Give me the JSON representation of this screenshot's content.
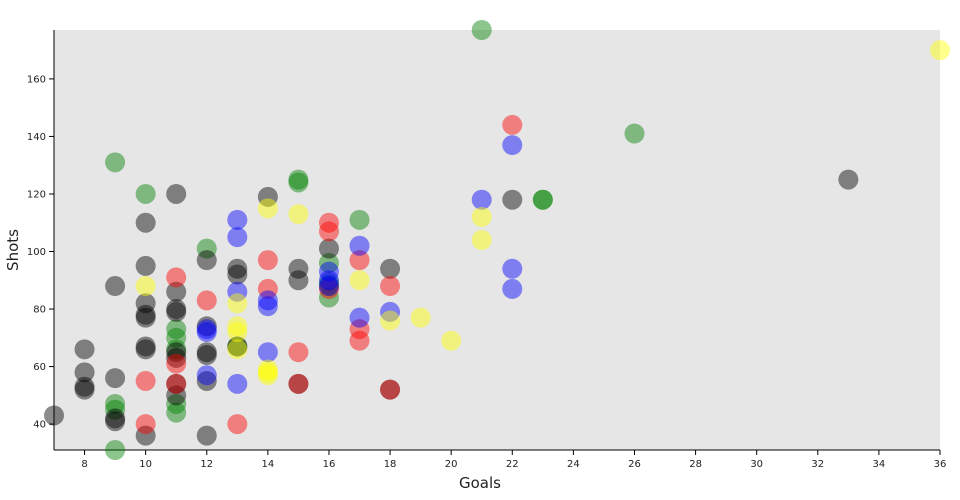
{
  "chart_data": {
    "type": "scatter",
    "x_label": "Goals",
    "y_label": "Shots",
    "xlim": [
      7,
      36
    ],
    "ylim": [
      31,
      177
    ],
    "xticks": [
      8,
      10,
      12,
      14,
      16,
      18,
      20,
      22,
      24,
      26,
      28,
      30,
      32,
      34,
      36
    ],
    "yticks": [
      40,
      60,
      80,
      100,
      120,
      140,
      160
    ],
    "background": "#e6e6e6",
    "opacity": 0.45,
    "series": [
      {
        "color": "#008000",
        "x": [
          21,
          26,
          9,
          10,
          15,
          15,
          23,
          23,
          17,
          12,
          16,
          16,
          16,
          11,
          11,
          11,
          11,
          11,
          9,
          9,
          9,
          13,
          16
        ],
        "values": [
          177,
          141,
          131,
          120,
          125,
          124,
          118,
          118,
          111,
          101,
          96,
          89,
          84,
          73,
          70,
          66,
          47,
          44,
          47,
          45,
          31,
          67,
          88
        ]
      },
      {
        "color": "#000000",
        "x": [
          7,
          8,
          8,
          8,
          8,
          9,
          9,
          9,
          9,
          10,
          10,
          10,
          10,
          10,
          10,
          10,
          10,
          11,
          11,
          11,
          11,
          11,
          11,
          11,
          11,
          12,
          12,
          12,
          12,
          12,
          12,
          13,
          13,
          13,
          14,
          15,
          15,
          15,
          16,
          18,
          18,
          22,
          33
        ],
        "values": [
          43,
          66,
          58,
          52,
          53,
          88,
          56,
          42,
          41,
          110,
          95,
          82,
          78,
          77,
          67,
          66,
          36,
          120,
          86,
          80,
          79,
          65,
          63,
          54,
          50,
          97,
          74,
          65,
          64,
          55,
          36,
          94,
          92,
          67,
          119,
          94,
          90,
          54,
          101,
          94,
          52,
          118,
          125
        ]
      },
      {
        "color": "#ff0000",
        "x": [
          22,
          16,
          16,
          11,
          12,
          14,
          14,
          17,
          17,
          17,
          18,
          16,
          15,
          10,
          11,
          11,
          10,
          13,
          15,
          18
        ],
        "values": [
          144,
          110,
          107,
          91,
          83,
          97,
          87,
          97,
          73,
          69,
          88,
          87,
          65,
          55,
          61,
          54,
          40,
          40,
          54,
          52
        ]
      },
      {
        "color": "#0000ff",
        "x": [
          22,
          21,
          22,
          22,
          13,
          13,
          17,
          16,
          16,
          13,
          14,
          14,
          12,
          12,
          17,
          18,
          14,
          12,
          13,
          16
        ],
        "values": [
          137,
          118,
          94,
          87,
          111,
          105,
          102,
          93,
          90,
          86,
          83,
          81,
          73,
          72,
          77,
          79,
          65,
          57,
          54,
          88
        ]
      },
      {
        "color": "#ffff00",
        "x": [
          36,
          14,
          15,
          21,
          21,
          10,
          17,
          13,
          13,
          13,
          18,
          19,
          20,
          14,
          14,
          14,
          13
        ],
        "values": [
          170,
          115,
          113,
          112,
          104,
          88,
          90,
          82,
          74,
          72,
          76,
          77,
          69,
          59,
          58,
          57,
          66
        ]
      }
    ]
  }
}
